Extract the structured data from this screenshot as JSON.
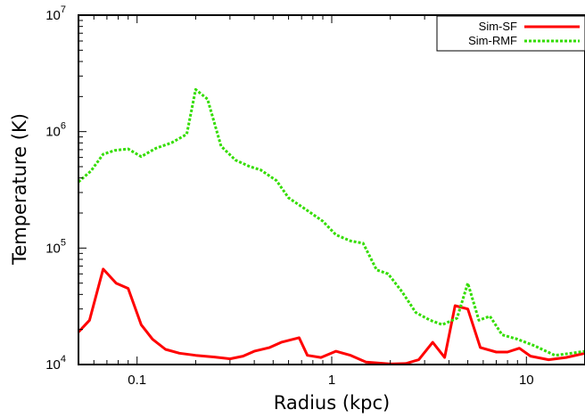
{
  "chart_data": {
    "type": "line",
    "xlabel": "Radius (kpc)",
    "ylabel": "Temperature (K)",
    "x_scale": "log",
    "y_scale": "log",
    "xlim": [
      0.05,
      20
    ],
    "ylim": [
      10000,
      10000000
    ],
    "x_ticks": [
      {
        "value": 0.1,
        "label": "0.1"
      },
      {
        "value": 1,
        "label": "1"
      },
      {
        "value": 10,
        "label": "10"
      }
    ],
    "y_ticks": [
      {
        "value": 10000,
        "base": "10",
        "exp": "4"
      },
      {
        "value": 100000,
        "base": "10",
        "exp": "5"
      },
      {
        "value": 1000000,
        "base": "10",
        "exp": "6"
      },
      {
        "value": 10000000,
        "base": "10",
        "exp": "7"
      }
    ],
    "grid": false,
    "legend_position": "top-right",
    "series": [
      {
        "name": "Sim-SF",
        "color": "#ff0000",
        "style": "solid",
        "points": [
          [
            0.05,
            19000
          ],
          [
            0.057,
            24000
          ],
          [
            0.067,
            66000
          ],
          [
            0.078,
            50000
          ],
          [
            0.09,
            45000
          ],
          [
            0.105,
            22000
          ],
          [
            0.12,
            16500
          ],
          [
            0.14,
            13500
          ],
          [
            0.165,
            12500
          ],
          [
            0.2,
            12000
          ],
          [
            0.25,
            11600
          ],
          [
            0.3,
            11200
          ],
          [
            0.35,
            11800
          ],
          [
            0.4,
            13000
          ],
          [
            0.48,
            14000
          ],
          [
            0.55,
            15500
          ],
          [
            0.68,
            17000
          ],
          [
            0.75,
            12000
          ],
          [
            0.88,
            11500
          ],
          [
            1.05,
            13000
          ],
          [
            1.25,
            12000
          ],
          [
            1.5,
            10500
          ],
          [
            2.0,
            10100
          ],
          [
            2.4,
            10200
          ],
          [
            2.8,
            11000
          ],
          [
            3.3,
            15500
          ],
          [
            3.8,
            11500
          ],
          [
            4.3,
            32000
          ],
          [
            5.0,
            30000
          ],
          [
            5.8,
            14000
          ],
          [
            7.0,
            12800
          ],
          [
            8.0,
            12800
          ],
          [
            9.2,
            13800
          ],
          [
            10.5,
            11800
          ],
          [
            13.0,
            11000
          ],
          [
            16.0,
            11500
          ],
          [
            20.0,
            12500
          ]
        ]
      },
      {
        "name": "Sim-RMF",
        "color": "#33dd00",
        "style": "dashed",
        "points": [
          [
            0.05,
            370000
          ],
          [
            0.058,
            460000
          ],
          [
            0.067,
            640000
          ],
          [
            0.077,
            690000
          ],
          [
            0.09,
            710000
          ],
          [
            0.105,
            610000
          ],
          [
            0.125,
            720000
          ],
          [
            0.15,
            800000
          ],
          [
            0.18,
            950000
          ],
          [
            0.2,
            2300000
          ],
          [
            0.23,
            1900000
          ],
          [
            0.27,
            750000
          ],
          [
            0.32,
            570000
          ],
          [
            0.38,
            500000
          ],
          [
            0.43,
            470000
          ],
          [
            0.52,
            380000
          ],
          [
            0.6,
            270000
          ],
          [
            0.75,
            210000
          ],
          [
            0.9,
            170000
          ],
          [
            1.05,
            130000
          ],
          [
            1.25,
            115000
          ],
          [
            1.45,
            110000
          ],
          [
            1.7,
            65000
          ],
          [
            1.95,
            60000
          ],
          [
            2.3,
            42000
          ],
          [
            2.7,
            28000
          ],
          [
            3.2,
            24000
          ],
          [
            3.7,
            22000
          ],
          [
            4.4,
            25000
          ],
          [
            5.0,
            50000
          ],
          [
            5.7,
            24000
          ],
          [
            6.5,
            26000
          ],
          [
            7.5,
            18000
          ],
          [
            9.0,
            16500
          ],
          [
            11.0,
            14500
          ],
          [
            14.0,
            12000
          ],
          [
            17.0,
            12500
          ],
          [
            20.0,
            13000
          ]
        ]
      }
    ]
  }
}
